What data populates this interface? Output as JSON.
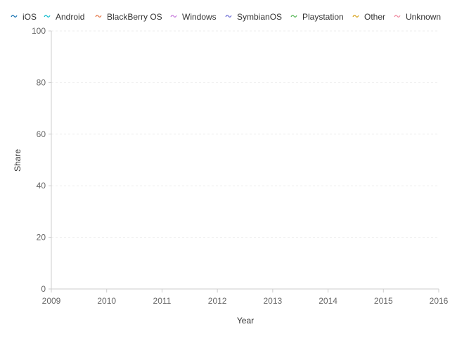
{
  "chart_data": {
    "type": "line",
    "title": "",
    "xlabel": "Year",
    "ylabel": "Share",
    "x_ticks": [
      "2009",
      "2010",
      "2011",
      "2012",
      "2013",
      "2014",
      "2015",
      "2016"
    ],
    "y_ticks": [
      "0",
      "20",
      "40",
      "60",
      "80",
      "100"
    ],
    "xlim": [
      2009,
      2016
    ],
    "ylim": [
      0,
      100
    ],
    "grid": true,
    "legend_position": "top",
    "series": [
      {
        "name": "iOS",
        "color": "#1f77b4",
        "values": []
      },
      {
        "name": "Android",
        "color": "#17becf",
        "values": []
      },
      {
        "name": "BlackBerry OS",
        "color": "#e6794a",
        "values": []
      },
      {
        "name": "Windows",
        "color": "#c77ddc",
        "values": []
      },
      {
        "name": "SymbianOS",
        "color": "#6f6fd6",
        "values": []
      },
      {
        "name": "Playstation",
        "color": "#5cb85c",
        "values": []
      },
      {
        "name": "Other",
        "color": "#d9a520",
        "values": []
      },
      {
        "name": "Unknown",
        "color": "#f08aa0",
        "values": []
      }
    ]
  }
}
